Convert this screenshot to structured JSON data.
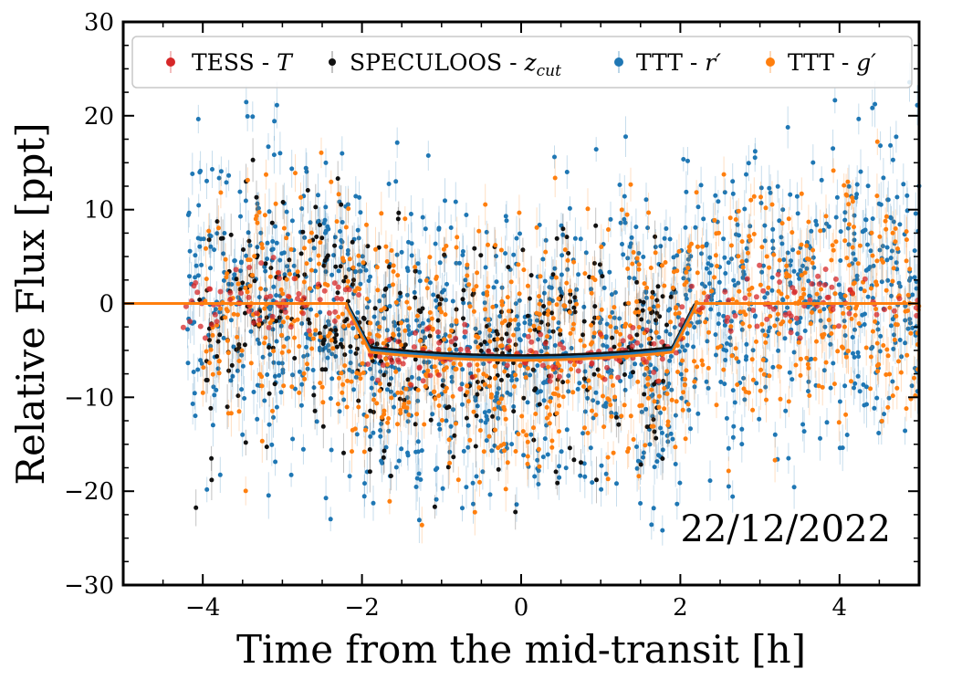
{
  "chart_data": {
    "type": "scatter",
    "title": "",
    "xlabel": "Time from the mid-transit [h]",
    "ylabel": "Relative Flux [ppt]",
    "xlim": [
      -5,
      5
    ],
    "ylim": [
      -30,
      30
    ],
    "xticks": [
      -4,
      -2,
      0,
      2,
      4
    ],
    "yticks": [
      -30,
      -20,
      -10,
      0,
      10,
      20,
      30
    ],
    "x_tick_labels": [
      "−4",
      "−2",
      "0",
      "2",
      "4"
    ],
    "y_tick_labels": [
      "−30",
      "−20",
      "−10",
      "0",
      "10",
      "20",
      "30"
    ],
    "annotation": "22/12/2022",
    "legend_position": "top",
    "grid": false,
    "transit": {
      "t1": -2.2,
      "t2": -1.9,
      "t3": 1.9,
      "t4": 2.2,
      "depth": -5.8,
      "limb_curvature": 0.5
    },
    "series": [
      {
        "name": "TESS",
        "band": "T",
        "color": "#d62728",
        "x_range": [
          -4.3,
          5.0
        ],
        "n_points": 260,
        "scatter": 1.6
      },
      {
        "name": "SPECULOOS",
        "band": "z_cut",
        "color": "#111111",
        "x_range": [
          -4.1,
          2.0
        ],
        "n_points": 380,
        "scatter": 6.5
      },
      {
        "name": "TTT",
        "band": "r′",
        "color": "#1f77b4",
        "x_range": [
          -4.2,
          5.0
        ],
        "n_points": 1400,
        "scatter": 8.0
      },
      {
        "name": "TTT",
        "band": "g′",
        "color": "#ff7f0e",
        "x_range": [
          -4.0,
          5.0
        ],
        "n_points": 900,
        "scatter": 6.5
      }
    ],
    "model_lines": [
      {
        "series": "SPECULOOS",
        "color": "#111111"
      },
      {
        "series": "TTT r′",
        "color": "#1f77b4"
      },
      {
        "series": "TTT g′",
        "color": "#ff7f0e"
      }
    ]
  }
}
